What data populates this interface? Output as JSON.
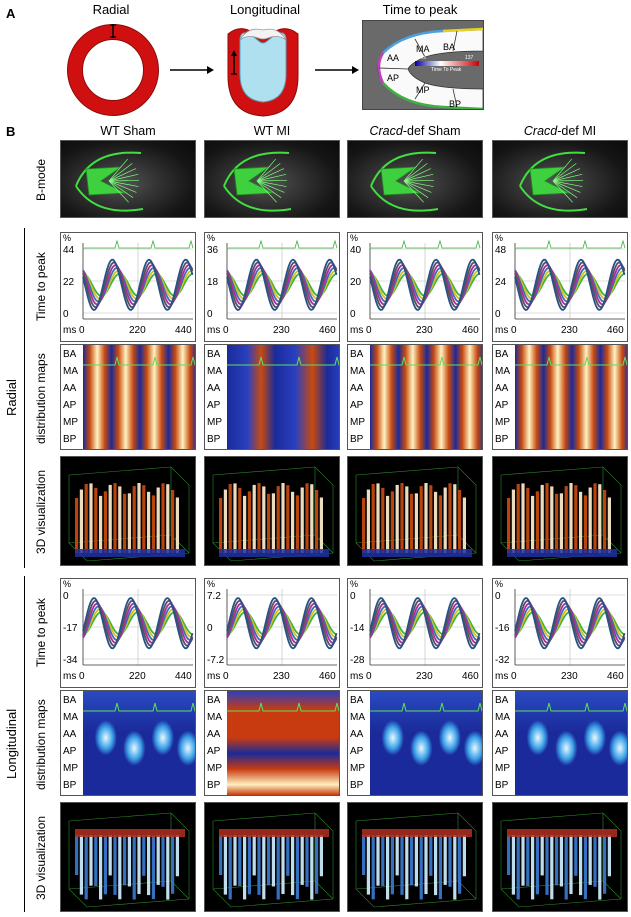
{
  "panel_a": {
    "label": "A",
    "radial": "Radial",
    "longitudinal": "Longitudinal",
    "time_to_peak": "Time to peak",
    "segments": [
      "BA",
      "MA",
      "AA",
      "AP",
      "MP",
      "BP"
    ],
    "scale_min": "0 ms",
    "scale_max": "137",
    "scale_title": "Time To Peak"
  },
  "panel_b": {
    "label": "B",
    "columns": [
      "WT Sham",
      "WT MI",
      "Cracd-def Sham",
      "Cracd-def MI"
    ],
    "column_italic": [
      "",
      "",
      "Cracd",
      "Cracd"
    ],
    "column_rest": [
      "WT Sham",
      "WT MI",
      "-def Sham",
      "-def MI"
    ],
    "row_labels": {
      "bmode": "B-mode",
      "ttp": "Time to peak",
      "dmap": "distribution maps",
      "vis3d": "3D visualization"
    },
    "groups": {
      "radial": "Radial",
      "longitudinal": "Longitudinal"
    },
    "segments": [
      "BA",
      "MA",
      "AA",
      "AP",
      "MP",
      "BP"
    ],
    "unit_pct": "%",
    "unit_ms": "ms"
  },
  "chart_data": [
    {
      "type": "line",
      "group": "Radial",
      "column": "WT Sham",
      "yticks": [
        "44",
        "22",
        "0"
      ],
      "xticks": [
        "0",
        "220",
        "440"
      ]
    },
    {
      "type": "line",
      "group": "Radial",
      "column": "WT MI",
      "yticks": [
        "36",
        "18",
        "0"
      ],
      "xticks": [
        "0",
        "230",
        "460"
      ]
    },
    {
      "type": "line",
      "group": "Radial",
      "column": "Cracd-def Sham",
      "yticks": [
        "40",
        "20",
        "0"
      ],
      "xticks": [
        "0",
        "230",
        "460"
      ]
    },
    {
      "type": "line",
      "group": "Radial",
      "column": "Cracd-def MI",
      "yticks": [
        "48",
        "24",
        "0"
      ],
      "xticks": [
        "0",
        "230",
        "460"
      ]
    },
    {
      "type": "line",
      "group": "Longitudinal",
      "column": "WT Sham",
      "yticks": [
        "0",
        "-17",
        "-34"
      ],
      "xticks": [
        "0",
        "220",
        "440"
      ]
    },
    {
      "type": "line",
      "group": "Longitudinal",
      "column": "WT MI",
      "yticks": [
        "7.2",
        "0",
        "-7.2"
      ],
      "xticks": [
        "0",
        "230",
        "460"
      ]
    },
    {
      "type": "line",
      "group": "Longitudinal",
      "column": "Cracd-def Sham",
      "yticks": [
        "0",
        "-14",
        "-28"
      ],
      "xticks": [
        "0",
        "230",
        "460"
      ]
    },
    {
      "type": "line",
      "group": "Longitudinal",
      "column": "Cracd-def MI",
      "yticks": [
        "0",
        "-16",
        "-32"
      ],
      "xticks": [
        "0",
        "230",
        "460"
      ]
    }
  ],
  "colors": {
    "myocardium": "#d01010",
    "cavity": "#aee0f0",
    "trace_green": "#3db23d",
    "trace_yellow": "#d8c020",
    "trace_blue": "#3a6fb0",
    "trace_magenta": "#b02aa0",
    "trace_gray": "#555555"
  }
}
